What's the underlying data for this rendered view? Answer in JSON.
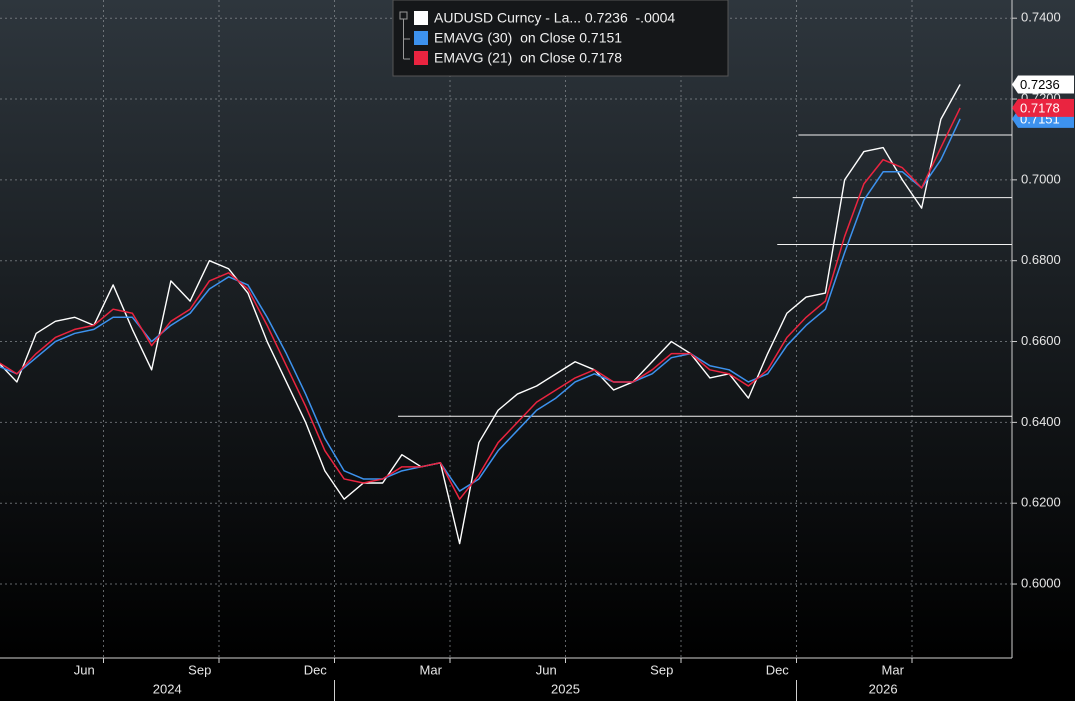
{
  "chart_data": {
    "type": "line",
    "categories": [
      null,
      null,
      null,
      null,
      "Jun",
      null,
      null,
      null,
      null,
      null,
      "Sep",
      null,
      null,
      null,
      null,
      null,
      "Dec",
      null,
      null,
      null,
      null,
      null,
      "Mar",
      null,
      null,
      null,
      null,
      null,
      "Jun",
      null,
      null,
      null,
      null,
      null,
      "Sep",
      null,
      null,
      null,
      null,
      null,
      "Dec",
      null,
      null,
      null,
      null,
      null,
      "Mar",
      null,
      null,
      null,
      null
    ],
    "year_groups": [
      {
        "label": "2024",
        "count": 18
      },
      {
        "label": "2025",
        "count": 24
      },
      {
        "label": "2026",
        "count": 9
      }
    ],
    "series": [
      {
        "name": "AUDUSD Curncy - La... 0.7236  -.0004",
        "color": "#ffffff",
        "values": [
          0.655,
          0.65,
          0.662,
          0.665,
          0.666,
          0.664,
          0.674,
          0.663,
          0.653,
          0.675,
          0.67,
          0.68,
          0.678,
          0.672,
          0.66,
          0.65,
          0.64,
          0.628,
          0.621,
          0.625,
          0.625,
          0.632,
          0.629,
          0.63,
          0.61,
          0.635,
          0.643,
          0.647,
          0.649,
          0.652,
          0.655,
          0.653,
          0.648,
          0.65,
          0.655,
          0.66,
          0.657,
          0.651,
          0.652,
          0.646,
          0.657,
          0.667,
          0.671,
          0.672,
          0.7,
          0.707,
          0.708,
          0.7,
          0.693,
          0.715,
          0.7236
        ]
      },
      {
        "name": "EMAVG (30)  on Close 0.7151",
        "color": "#3d92ee",
        "values": [
          0.654,
          0.652,
          0.656,
          0.66,
          0.662,
          0.663,
          0.666,
          0.666,
          0.66,
          0.664,
          0.667,
          0.673,
          0.676,
          0.674,
          0.666,
          0.657,
          0.647,
          0.636,
          0.628,
          0.626,
          0.626,
          0.628,
          0.629,
          0.63,
          0.623,
          0.626,
          0.633,
          0.638,
          0.643,
          0.646,
          0.65,
          0.652,
          0.65,
          0.65,
          0.652,
          0.656,
          0.657,
          0.654,
          0.653,
          0.65,
          0.652,
          0.659,
          0.664,
          0.668,
          0.682,
          0.695,
          0.702,
          0.702,
          0.698,
          0.705,
          0.7151
        ]
      },
      {
        "name": "EMAVG (21)  on Close 0.7178",
        "color": "#ea2440",
        "values": [
          0.655,
          0.652,
          0.657,
          0.661,
          0.663,
          0.664,
          0.668,
          0.667,
          0.659,
          0.665,
          0.668,
          0.675,
          0.677,
          0.673,
          0.664,
          0.654,
          0.644,
          0.633,
          0.626,
          0.625,
          0.626,
          0.629,
          0.629,
          0.63,
          0.621,
          0.627,
          0.635,
          0.64,
          0.645,
          0.648,
          0.651,
          0.653,
          0.65,
          0.65,
          0.653,
          0.657,
          0.657,
          0.653,
          0.652,
          0.649,
          0.653,
          0.661,
          0.666,
          0.67,
          0.686,
          0.699,
          0.705,
          0.703,
          0.698,
          0.708,
          0.7178
        ]
      }
    ],
    "ylim": [
      0.5817,
      0.7445
    ],
    "yticks": [
      {
        "value": 0.6,
        "label": "0.6000"
      },
      {
        "value": 0.62,
        "label": "0.6200"
      },
      {
        "value": 0.64,
        "label": "0.6400"
      },
      {
        "value": 0.66,
        "label": "0.6600"
      },
      {
        "value": 0.68,
        "label": "0.6800"
      },
      {
        "value": 0.7,
        "label": "0.7000"
      },
      {
        "value": 0.72,
        "label": "0.7200"
      },
      {
        "value": 0.74,
        "label": "0.7400"
      }
    ],
    "grid": true,
    "hlines": [
      {
        "value": 0.7111,
        "start": 42.1
      },
      {
        "value": 0.6956,
        "start": 41.8
      },
      {
        "value": 0.684,
        "start": 41.0
      },
      {
        "value": 0.6415,
        "start": 21.3
      }
    ]
  }
}
